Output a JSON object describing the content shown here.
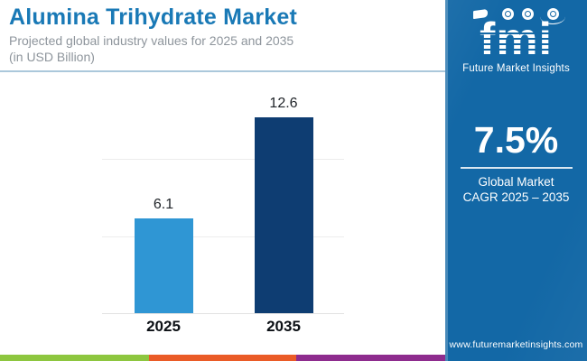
{
  "header": {
    "title": "Alumina Trihydrate Market",
    "subtitle_line1": "Projected global industry values for 2025 and 2035",
    "subtitle_line2": "(in USD Billion)"
  },
  "chart_data": {
    "type": "bar",
    "title": "Alumina Trihydrate Market",
    "subtitle": "Projected global industry values for 2025 and 2035 (in USD Billion)",
    "categories": [
      "2025",
      "2035"
    ],
    "values": [
      6.1,
      12.6
    ],
    "value_labels": [
      "6.1",
      "12.6"
    ],
    "unit": "USD Billion",
    "xlabel": "",
    "ylabel": "",
    "ylim": [
      0,
      15.1
    ],
    "gridline_values": [
      5,
      10
    ],
    "grid": true,
    "legend": false,
    "bar_colors": [
      "#2F96D4",
      "#0E3D72"
    ]
  },
  "side_panel": {
    "background_color": "#1368A6",
    "logo": {
      "brand": "fmi",
      "brand_name": "Future Market Insights",
      "icons": [
        "flag-icon",
        "dove-icon",
        "plane-icon",
        "globe-icon"
      ]
    },
    "stat": {
      "value": "7.5%",
      "caption_line1": "Global Market",
      "caption_line2": "CAGR 2025 – 2035"
    },
    "website": "www.futuremarketinsights.com"
  },
  "footer_stripe": {
    "colors": [
      "#8DC63F",
      "#EA5B27",
      "#8E2C8E"
    ]
  }
}
